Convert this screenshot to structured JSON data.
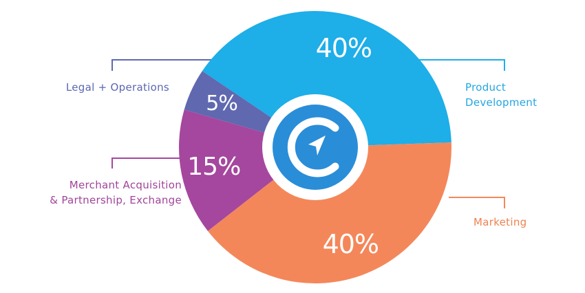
{
  "chart_data": {
    "type": "pie",
    "title": "",
    "slices": [
      {
        "label_lines": [
          "Product",
          "Development"
        ],
        "value": 40,
        "value_label": "40%",
        "color": "#1eaee8"
      },
      {
        "label_lines": [
          "Marketing"
        ],
        "value": 40,
        "value_label": "40%",
        "color": "#f4875a"
      },
      {
        "label_lines": [
          "Merchant Acquisition",
          "& Partnership, Exchange"
        ],
        "value": 15,
        "value_label": "15%",
        "color": "#a5479e"
      },
      {
        "label_lines": [
          "Legal + Operations"
        ],
        "value": 5,
        "value_label": "5%",
        "color": "#6068b0"
      }
    ]
  },
  "center_logo": {
    "icon": "c-logo-paper-plane-icon",
    "color": "#2a8dd8"
  }
}
